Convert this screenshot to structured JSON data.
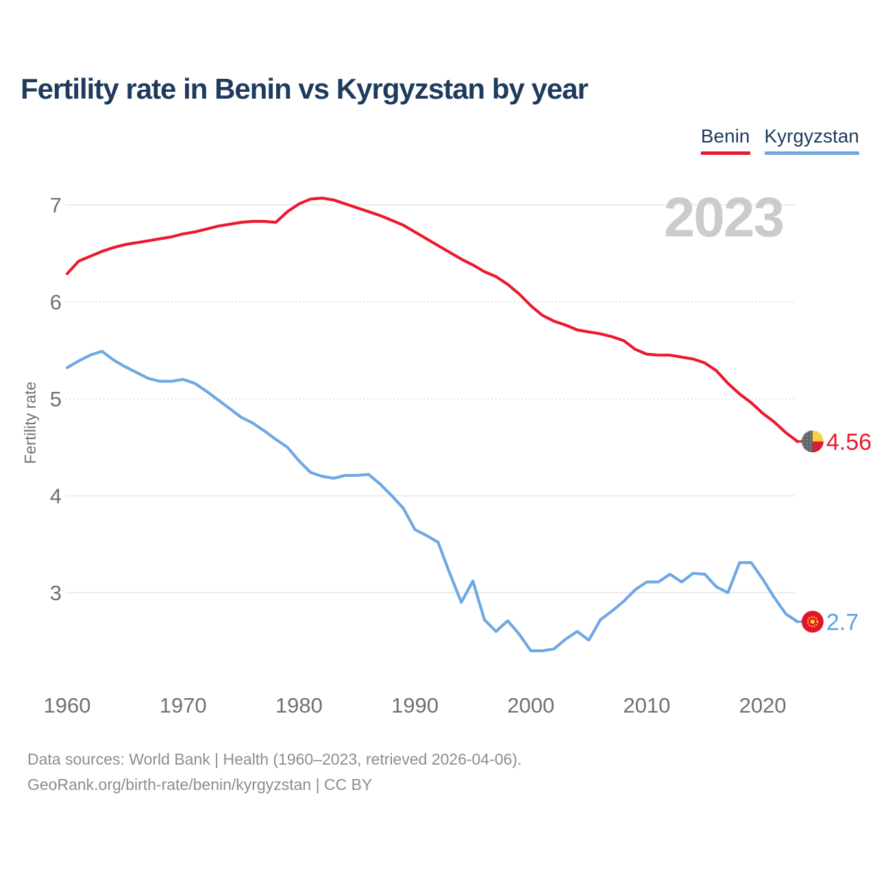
{
  "title": "Fertility rate in Benin vs Kyrgyzstan by year",
  "legend": {
    "benin": "Benin",
    "kyrgyzstan": "Kyrgyzstan"
  },
  "watermark": "2023",
  "y_axis_label": "Fertility rate",
  "end_labels": {
    "benin": "4.56",
    "kyrgyzstan": "2.7"
  },
  "footer": {
    "line1": "Data sources: World Bank | Health (1960–2023, retrieved 2026-04-06).",
    "line2": "GeoRank.org/birth-rate/benin/kyrgyzstan | CC BY"
  },
  "colors": {
    "benin_line": "#eb192d",
    "kyrgyzstan_line": "#6ea8e3",
    "title_navy": "#1e3a5c",
    "watermark_gray": "#c9cbcd",
    "grid_solid": "#ececec",
    "grid_dotted": "#d9d9d9",
    "tick_gray": "#6f7070",
    "benin_flag_gray": "#63666a",
    "benin_flag_yellow": "#f8d04a",
    "benin_flag_red": "#d81e32",
    "kyrgyz_flag_red": "#e0162b",
    "kyrgyz_flag_yellow": "#ffd12c"
  },
  "chart_data": {
    "type": "line",
    "title": "Fertility rate in Benin vs Kyrgyzstan by year",
    "xlabel": "",
    "ylabel": "Fertility rate",
    "x_ticks": [
      1960,
      1970,
      1980,
      1990,
      2000,
      2010,
      2020
    ],
    "y_ticks": [
      7,
      6,
      5,
      4,
      3
    ],
    "grid_dotted_ticks": [
      6,
      5
    ],
    "ylim": [
      2.2,
      7.15
    ],
    "xlim": [
      1960,
      2023
    ],
    "legend_position": "top-right",
    "x": [
      1960,
      1961,
      1962,
      1963,
      1964,
      1965,
      1966,
      1967,
      1968,
      1969,
      1970,
      1971,
      1972,
      1973,
      1974,
      1975,
      1976,
      1977,
      1978,
      1979,
      1980,
      1981,
      1982,
      1983,
      1984,
      1985,
      1986,
      1987,
      1988,
      1989,
      1990,
      1991,
      1992,
      1993,
      1994,
      1995,
      1996,
      1997,
      1998,
      1999,
      2000,
      2001,
      2002,
      2003,
      2004,
      2005,
      2006,
      2007,
      2008,
      2009,
      2010,
      2011,
      2012,
      2013,
      2014,
      2015,
      2016,
      2017,
      2018,
      2019,
      2020,
      2021,
      2022,
      2023
    ],
    "series": [
      {
        "name": "Benin",
        "color": "#eb192d",
        "end_value": 4.56,
        "values": [
          6.29,
          6.42,
          6.47,
          6.52,
          6.56,
          6.59,
          6.61,
          6.63,
          6.65,
          6.67,
          6.7,
          6.72,
          6.75,
          6.78,
          6.8,
          6.82,
          6.83,
          6.83,
          6.82,
          6.93,
          7.01,
          7.06,
          7.07,
          7.05,
          7.01,
          6.97,
          6.93,
          6.89,
          6.84,
          6.79,
          6.72,
          6.65,
          6.58,
          6.51,
          6.44,
          6.38,
          6.31,
          6.26,
          6.18,
          6.08,
          5.96,
          5.86,
          5.8,
          5.76,
          5.71,
          5.69,
          5.67,
          5.64,
          5.6,
          5.51,
          5.46,
          5.45,
          5.45,
          5.43,
          5.41,
          5.37,
          5.29,
          5.16,
          5.05,
          4.96,
          4.85,
          4.76,
          4.65,
          4.56
        ]
      },
      {
        "name": "Kyrgyzstan",
        "color": "#6ea8e3",
        "end_value": 2.7,
        "values": [
          5.32,
          5.39,
          5.45,
          5.49,
          5.4,
          5.33,
          5.27,
          5.21,
          5.18,
          5.18,
          5.2,
          5.16,
          5.08,
          4.99,
          4.9,
          4.81,
          4.75,
          4.67,
          4.58,
          4.5,
          4.36,
          4.24,
          4.2,
          4.18,
          4.21,
          4.21,
          4.22,
          4.12,
          4.0,
          3.87,
          3.65,
          3.59,
          3.52,
          3.2,
          2.9,
          3.12,
          2.72,
          2.6,
          2.71,
          2.57,
          2.4,
          2.4,
          2.42,
          2.52,
          2.6,
          2.51,
          2.72,
          2.81,
          2.91,
          3.03,
          3.11,
          3.11,
          3.19,
          3.11,
          3.2,
          3.19,
          3.06,
          3.0,
          3.31,
          3.31,
          3.14,
          2.95,
          2.78,
          2.7
        ]
      }
    ]
  }
}
